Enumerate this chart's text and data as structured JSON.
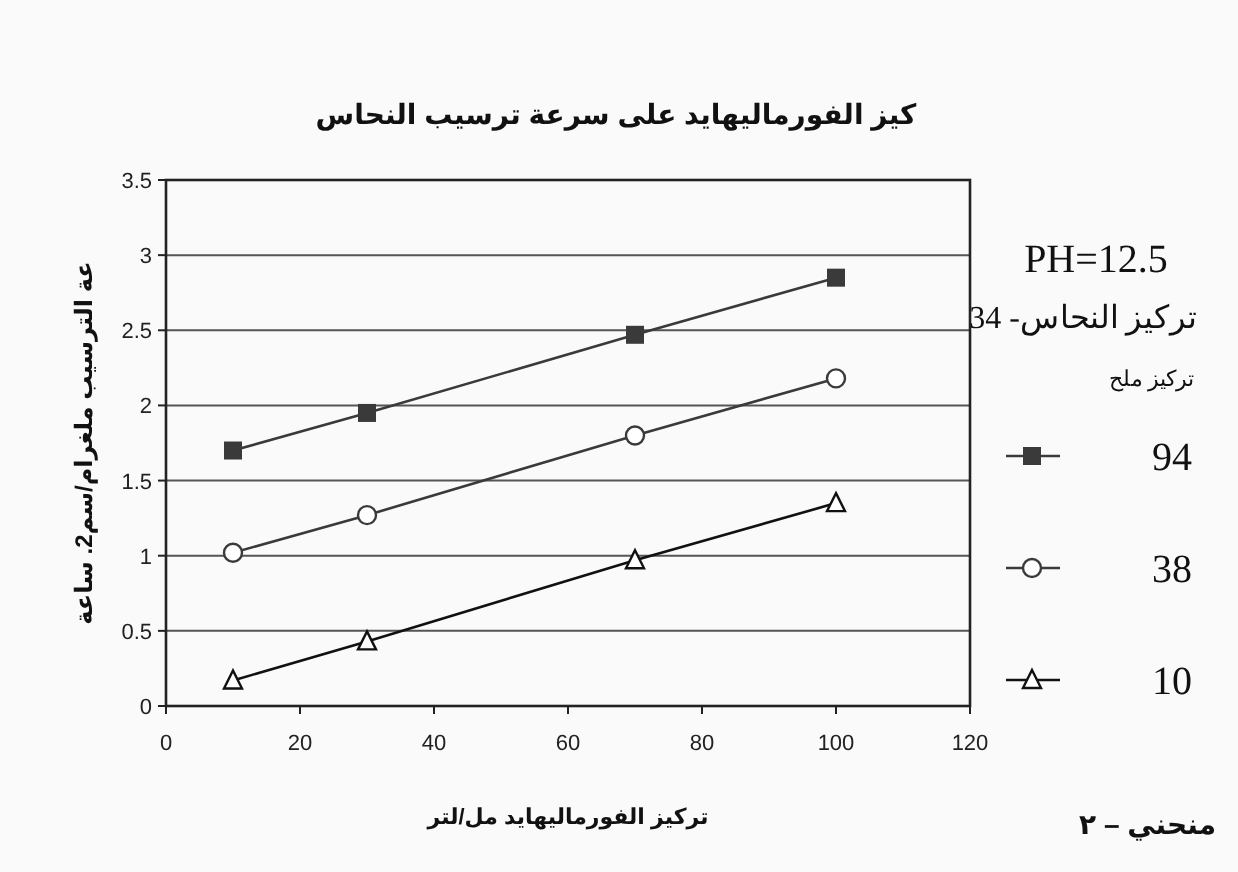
{
  "chart_data": {
    "type": "line",
    "title": "كيز الفورماليهايد على سرعة ترسيب النحاس",
    "xlabel": "تركيز الفورماليهايد مل/لتر",
    "ylabel": "عة الترسيب ملغرام/سم2. ساعة",
    "x": [
      10,
      30,
      70,
      100
    ],
    "series": [
      {
        "name": "94",
        "color": "#3a3a3a",
        "marker": "square",
        "values": [
          1.7,
          1.95,
          2.47,
          2.85
        ]
      },
      {
        "name": "38",
        "color": "#3a3a3a",
        "marker": "circle",
        "values": [
          1.02,
          1.27,
          1.8,
          2.18
        ]
      },
      {
        "name": "10",
        "color": "#111111",
        "marker": "triangle",
        "values": [
          0.17,
          0.43,
          0.97,
          1.35
        ]
      }
    ],
    "xlim": [
      0,
      120
    ],
    "xticks": [
      0,
      20,
      40,
      60,
      80,
      100,
      120
    ],
    "ylim": [
      0,
      3.5
    ],
    "yticks": [
      0,
      0.5,
      1,
      1.5,
      2,
      2.5,
      3,
      3.5
    ],
    "grid": "y",
    "legend": "right",
    "line_style": "solid",
    "annotations": [
      "PH=12.5",
      "تركيز النحاس- 34",
      "تركيز ملح",
      "منحني – ٢"
    ]
  }
}
